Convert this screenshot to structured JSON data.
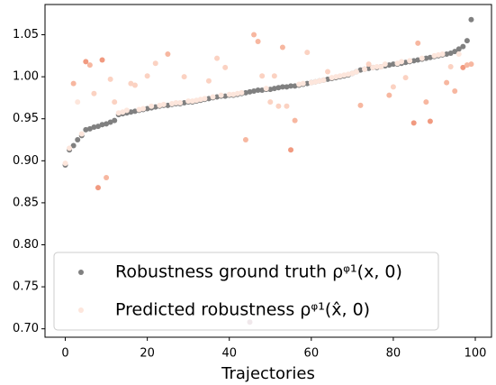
{
  "chart_data": {
    "type": "scatter",
    "xlabel": "Trajectories",
    "x": [
      0,
      1,
      2,
      3,
      4,
      5,
      6,
      7,
      8,
      9,
      10,
      11,
      12,
      13,
      14,
      15,
      16,
      17,
      18,
      19,
      20,
      21,
      22,
      23,
      24,
      25,
      26,
      27,
      28,
      29,
      30,
      31,
      32,
      33,
      34,
      35,
      36,
      37,
      38,
      39,
      40,
      41,
      42,
      43,
      44,
      45,
      46,
      47,
      48,
      49,
      50,
      51,
      52,
      53,
      54,
      55,
      56,
      57,
      58,
      59,
      60,
      61,
      62,
      63,
      64,
      65,
      66,
      67,
      68,
      69,
      70,
      71,
      72,
      73,
      74,
      75,
      76,
      77,
      78,
      79,
      80,
      81,
      82,
      83,
      84,
      85,
      86,
      87,
      88,
      89,
      90,
      91,
      92,
      93,
      94,
      95,
      96,
      97,
      98,
      99
    ],
    "series": [
      {
        "name": "Robustness ground truth ρᵠ¹(x, 0)",
        "color": "#808080",
        "values": [
          0.895,
          0.913,
          0.918,
          0.925,
          0.93,
          0.937,
          0.938,
          0.94,
          0.941,
          0.943,
          0.944,
          0.946,
          0.948,
          0.955,
          0.956,
          0.957,
          0.958,
          0.959,
          0.96,
          0.961,
          0.962,
          0.963,
          0.964,
          0.965,
          0.966,
          0.966,
          0.967,
          0.968,
          0.968,
          0.969,
          0.97,
          0.97,
          0.971,
          0.972,
          0.973,
          0.974,
          0.975,
          0.976,
          0.977,
          0.977,
          0.978,
          0.978,
          0.979,
          0.98,
          0.981,
          0.982,
          0.983,
          0.984,
          0.984,
          0.985,
          0.985,
          0.986,
          0.987,
          0.988,
          0.988,
          0.989,
          0.989,
          0.99,
          0.991,
          0.992,
          0.993,
          0.994,
          0.995,
          0.996,
          0.997,
          0.998,
          0.999,
          1.0,
          1.001,
          1.002,
          1.004,
          1.006,
          1.008,
          1.009,
          1.01,
          1.011,
          1.011,
          1.012,
          1.013,
          1.014,
          1.015,
          1.015,
          1.016,
          1.017,
          1.018,
          1.019,
          1.02,
          1.021,
          1.022,
          1.023,
          1.024,
          1.025,
          1.026,
          1.027,
          1.028,
          1.03,
          1.033,
          1.036,
          1.043,
          1.068
        ]
      },
      {
        "name": "Predicted robustness ρᵠ¹(x̂, 0)",
        "color": "#fde6dc",
        "values": [
          0.897,
          0.915,
          0.992,
          0.97,
          0.932,
          1.018,
          1.014,
          0.98,
          0.868,
          1.02,
          0.88,
          0.997,
          0.97,
          0.957,
          0.958,
          0.96,
          0.992,
          0.99,
          0.961,
          0.962,
          1.001,
          0.965,
          1.016,
          0.966,
          0.967,
          1.027,
          0.968,
          0.969,
          0.969,
          1.0,
          0.971,
          0.971,
          0.972,
          0.973,
          0.974,
          0.995,
          0.976,
          1.022,
          0.978,
          1.011,
          0.979,
          0.979,
          0.98,
          0.981,
          0.925,
          0.708,
          1.05,
          1.042,
          1.001,
          0.986,
          0.97,
          1.001,
          0.965,
          1.035,
          0.965,
          0.913,
          0.948,
          0.991,
          0.992,
          1.029,
          0.993,
          0.994,
          0.995,
          0.996,
          1.006,
          0.999,
          1.0,
          1.001,
          1.002,
          1.003,
          1.004,
          1.006,
          0.966,
          1.009,
          1.015,
          1.011,
          1.012,
          1.012,
          1.015,
          0.978,
          0.988,
          1.016,
          1.018,
          0.999,
          1.019,
          0.945,
          1.04,
          1.022,
          0.97,
          0.947,
          1.025,
          1.026,
          1.027,
          0.993,
          1.012,
          0.983,
          1.027,
          1.011,
          1.014,
          1.015
        ],
        "colors": [
          "#fde6dc",
          "#fde6dc",
          "#f7b7a0",
          "#fde6dc",
          "#fde6dc",
          "#f19a80",
          "#f7b7a0",
          "#fbd2c2",
          "#f19a80",
          "#f19a80",
          "#f7b7a0",
          "#fbd2c2",
          "#fbd2c2",
          "#fde6dc",
          "#fde6dc",
          "#fde6dc",
          "#fbd2c2",
          "#fbd2c2",
          "#fde6dc",
          "#fde6dc",
          "#fbd2c2",
          "#fde6dc",
          "#fbd2c2",
          "#fde6dc",
          "#fde6dc",
          "#f7b7a0",
          "#fde6dc",
          "#fde6dc",
          "#fde6dc",
          "#fbd2c2",
          "#fde6dc",
          "#fde6dc",
          "#fde6dc",
          "#fde6dc",
          "#fde6dc",
          "#fbd2c2",
          "#fde6dc",
          "#fbd2c2",
          "#fde6dc",
          "#fbd2c2",
          "#fde6dc",
          "#fde6dc",
          "#fde6dc",
          "#fde6dc",
          "#f7b7a0",
          "#b58a9a",
          "#f7b7a0",
          "#f7b7a0",
          "#fbd2c2",
          "#fde6dc",
          "#fbd2c2",
          "#fbd2c2",
          "#fbd2c2",
          "#f7b7a0",
          "#fbd2c2",
          "#f19a80",
          "#f7b7a0",
          "#fde6dc",
          "#fde6dc",
          "#fbd2c2",
          "#fde6dc",
          "#fde6dc",
          "#fde6dc",
          "#fde6dc",
          "#fbd2c2",
          "#fde6dc",
          "#fde6dc",
          "#fde6dc",
          "#fde6dc",
          "#fde6dc",
          "#fde6dc",
          "#fde6dc",
          "#f7b7a0",
          "#fde6dc",
          "#fbd2c2",
          "#fde6dc",
          "#fde6dc",
          "#fde6dc",
          "#fde6dc",
          "#f7b7a0",
          "#fbd2c2",
          "#fde6dc",
          "#fde6dc",
          "#fbd2c2",
          "#fde6dc",
          "#f19a80",
          "#f7b7a0",
          "#fde6dc",
          "#f7b7a0",
          "#f19a80",
          "#fde6dc",
          "#fde6dc",
          "#fde6dc",
          "#f7b7a0",
          "#fbd2c2",
          "#f7b7a0",
          "#fde6dc",
          "#f19a80",
          "#f7b7a0",
          "#f7b7a0"
        ]
      }
    ],
    "xlim": [
      -4.95,
      103.95
    ],
    "ylim": [
      0.69,
      1.086
    ],
    "xticks": [
      0,
      20,
      40,
      60,
      80,
      100
    ],
    "yticks": [
      {
        "value": 0.7,
        "label": "0.70"
      },
      0.75,
      {
        "value": 0.8,
        "label": "0.80"
      },
      0.85,
      {
        "value": 0.9,
        "label": "0.90"
      },
      0.95,
      {
        "value": 1.0,
        "label": "1.00"
      },
      1.05
    ],
    "legend": "lower left"
  }
}
